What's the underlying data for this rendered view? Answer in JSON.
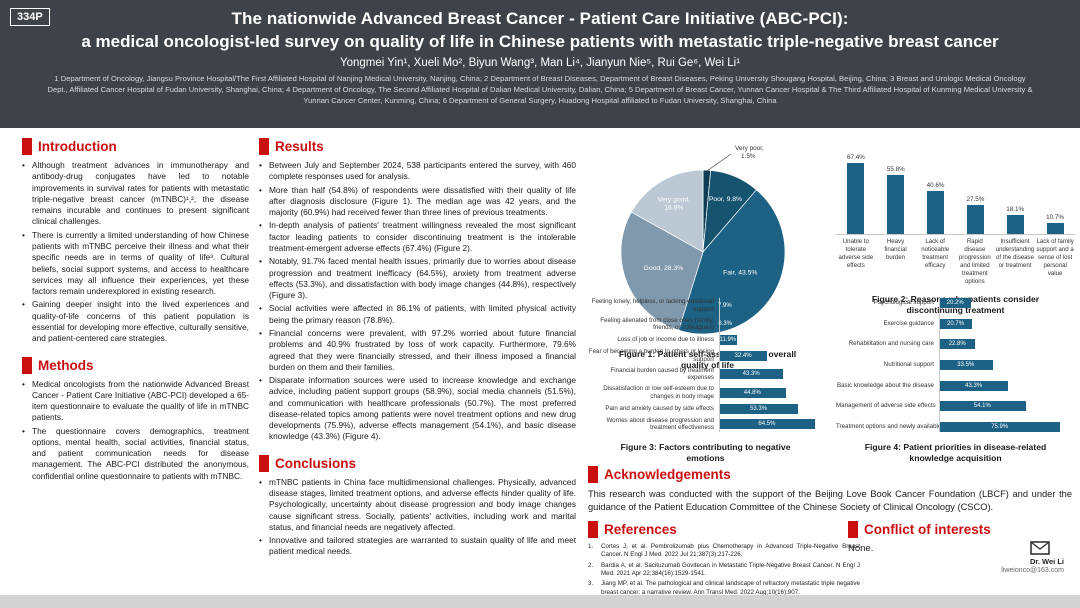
{
  "header": {
    "badge": "334P",
    "title_line1": "The nationwide Advanced Breast Cancer - Patient Care Initiative (ABC-PCI):",
    "title_line2": "a medical oncologist-led survey on quality of life in Chinese patients with metastatic triple-negative breast cancer",
    "authors": "Yongmei Yin¹, Xueli Mo², Biyun Wang³, Man Li⁴, Jianyun Nie⁵, Rui Ge⁶, Wei Li¹",
    "affiliations": "1 Department of Oncology, Jiangsu Province Hospital/The First Affiliated Hospital of Nanjing Medical University, Nanjing, China; 2 Department of Breast Diseases, Department of Breast Diseases, Peking University Shougang Hospital, Beijing, China; 3 Breast and Urologic Medical Oncology Dept., Affiliated Cancer Hospital of Fudan University, Shanghai, China; 4 Department of Oncology, The Second Affiliated Hospital of Dalian Medical University, Dalian, China; 5 Department of Breast Cancer, Yunnan Cancer Hospital & The Third Affiliated Hospital of Kunming Medical University & Yunnan Cancer Center, Kunming, China; 6 Department of General Surgery, Huadong Hospital affiliated to Fudan University, Shanghai, China"
  },
  "sections": {
    "introduction": {
      "title": "Introduction",
      "bullets": [
        "Although treatment advances in immunotherapy and antibody-drug conjugates have led to notable improvements in survival rates for patients with metastatic triple-negative breast cancer (mTNBC)¹,², the disease remains incurable and continues to present significant clinical challenges.",
        "There is currently a limited understanding of how Chinese patients with mTNBC perceive their illness and what their specific needs are in terms of quality of life³. Cultural beliefs, social support systems, and access to healthcare services may all influence their experiences, yet these factors remain underexplored in existing research.",
        "Gaining deeper insight into the lived experiences and quality-of-life concerns of this patient population is essential for developing more effective, culturally sensitive, and patient-centered care strategies."
      ]
    },
    "methods": {
      "title": "Methods",
      "bullets": [
        "Medical oncologists from the nationwide Advanced Breast Cancer - Patient Care Initiative (ABC-PCI) developed a 65-item questionnaire to evaluate the quality of life in mTNBC patients.",
        "The questionnaire covers demographics, treatment options, mental health, social activities, financial status, and patient communication needs for disease management. The ABC-PCI distributed the anonymous, confidential online questionnaire to patients with mTNBC."
      ]
    },
    "results": {
      "title": "Results",
      "bullets": [
        "Between July and September 2024, 538 participants entered the survey, with 460 complete responses used for analysis.",
        "More than half (54.8%) of respondents were dissatisfied with their quality of life after diagnosis disclosure (Figure 1). The median age was 42 years, and the majority (60.9%) had received fewer than three lines of previous treatments.",
        "In-depth analysis of patients' treatment willingness revealed the most significant factor leading patients to consider discontinuing treatment is the intolerable treatment-emergent adverse effects (67.4%) (Figure 2).",
        "Notably, 91.7% faced mental health issues, primarily due to worries about disease progression and treatment inefficacy (64.5%), anxiety from treatment adverse effects (53.3%), and dissatisfaction with body image changes (44.8%), respectively (Figure 3).",
        "Social activities were affected in 86.1% of patients, with limited physical activity being the primary reason (78.8%).",
        "Financial concerns were prevalent, with 97.2% worried about future financial problems and 40.9% frustrated by loss of work capacity. Furthermore, 79.6% agreed that they were financially stressed, and their illness imposed a financial burden on them and their families.",
        "Disparate information sources were used to increase knowledge and exchange advice, including patient support groups (58.9%), social media channels (51.5%), and communication with healthcare professionals (50.7%). The most preferred disease-related topics among patients were novel treatment options and new drug developments (75.9%), adverse effects management (54.1%), and basic disease knowledge (43.3%) (Figure 4)."
      ]
    },
    "conclusions": {
      "title": "Conclusions",
      "bullets": [
        "mTNBC patients in China face multidimensional challenges. Physically, advanced disease stages, limited treatment options, and adverse effects hinder quality of life. Psychologically, uncertainty about disease progression and body image changes cause significant stress. Socially, patients' activities, including work and marital status, and financial needs are negatively affected.",
        "Innovative and tailored strategies are warranted to sustain quality of life and meet patient medical needs."
      ]
    },
    "acknowledgements": {
      "title": "Acknowledgements",
      "text": "This research was conducted with the support of the Beijing Love Book Cancer Foundation (LBCF) and under the guidance of the Patient Education Committee of the Chinese Society of Clinical Oncology (CSCO)."
    },
    "references": {
      "title": "References",
      "items": [
        "Cortes J, et al. Pembrolizumab plus Chemotherapy in Advanced Triple-Negative Breast Cancer. N Engl J Med. 2022 Jul 21;387(3):217-226.",
        "Bardia A, et al. Sacituzumab Govitecan in Metastatic Triple-Negative Breast Cancer. N Engl J Med. 2021 Apr 22;384(16):1529-1541.",
        "Jiang MP, et al. The pathological and clinical landscape of refractory metastatic triple negative breast cancer: a narrative review. Ann Transl Med. 2022 Aug;10(16):907."
      ]
    },
    "conflict": {
      "title": "Conflict of interests",
      "text": "None."
    }
  },
  "contact": {
    "icon": "envelope-icon",
    "name": "Dr. Wei Li",
    "email": "liweionco@163.com"
  },
  "colors": {
    "header_bg": "#3e434a",
    "accent_red": "#cb0e10",
    "bar_teal": "#1d6285",
    "bottom_bar": "#d3d3d3"
  },
  "chart_data": [
    {
      "id": "figure1",
      "type": "pie",
      "title": "Figure 1: Patient self-assessment of overall quality of life",
      "slices": [
        {
          "label": "Very poor",
          "value": 1.5,
          "color": "#0d3c55",
          "callout": true
        },
        {
          "label": "Poor",
          "value": 9.8,
          "color": "#15536f"
        },
        {
          "label": "Fair",
          "value": 43.5,
          "color": "#1d6285"
        },
        {
          "label": "Good",
          "value": 28.3,
          "color": "#8099ad"
        },
        {
          "label": "Very good",
          "value": 16.9,
          "color": "#bcc9d4",
          "two_line": true
        }
      ]
    },
    {
      "id": "figure2",
      "type": "bar",
      "title": "Figure 2: Reasons why patients consider discontinuing treatment",
      "categories": [
        "Unable to tolerate adverse side effects",
        "Heavy financial burden",
        "Lack of noticeable treatment efficacy",
        "Rapid disease progression and limited treatment options",
        "Insufficient understanding of the disease or treatment",
        "Lack of family support and a sense of lost personal value"
      ],
      "values": [
        67.4,
        55.8,
        40.6,
        27.5,
        18.1,
        10.7
      ],
      "value_suffix": "%",
      "ylim": [
        0,
        80
      ],
      "bar_color": "#1d6285"
    },
    {
      "id": "figure3",
      "type": "hbar",
      "title": "Figure 3: Factors contributing to negative emotions",
      "categories": [
        "Feeling lonely, helpless, or lacking emotional support",
        "Feeling alienated from close ones (family, friends, or colleagues)",
        "Loss of job or income due to illness",
        "Fear of becoming a burden to others or losing support",
        "Financial burden caused by treatment expenses",
        "Dissatisfaction or low self-esteem due to changes in body image",
        "Pain and anxiety caused by side effects",
        "Worries about disease progression and treatment effectiveness"
      ],
      "values": [
        7.9,
        8.3,
        11.9,
        32.4,
        43.3,
        44.8,
        53.3,
        64.5
      ],
      "value_suffix": "%",
      "xlim": [
        0,
        70
      ],
      "bar_color": "#1d6285"
    },
    {
      "id": "figure4",
      "type": "hbar",
      "title": "Figure 4: Patient priorities in disease-related knowledge acquisition",
      "categories": [
        "Psychological support",
        "Exercise guidance",
        "Rehabilitation and nursing care",
        "Nutritional support",
        "Basic knowledge about the disease",
        "Management of adverse side effects",
        "Treatment options and newly available medications"
      ],
      "values": [
        20.2,
        20.7,
        22.8,
        33.5,
        43.3,
        54.1,
        75.9
      ],
      "value_suffix": "%",
      "xlim": [
        0,
        85
      ],
      "bar_color": "#1d6285"
    }
  ]
}
